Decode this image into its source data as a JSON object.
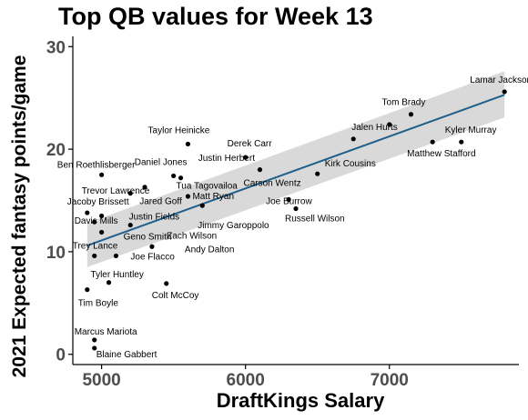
{
  "chart_data": {
    "type": "scatter",
    "title": "Top QB values for Week 13",
    "xlabel": "DraftKings Salary",
    "ylabel": "2021 Expected fantasy points/game",
    "xlim": [
      4800,
      7900
    ],
    "ylim": [
      -1,
      31
    ],
    "xticks": [
      5000,
      6000,
      7000
    ],
    "yticks": [
      0,
      10,
      20,
      30
    ],
    "grid": false,
    "colors": {
      "point": "#000000",
      "trend_line": "#1f5f8b",
      "confidence_band": "#d9d9d9"
    },
    "trend": {
      "x": [
        4900,
        7800
      ],
      "y": [
        10.6,
        25.3
      ],
      "band_upper": [
        12.8,
        27.6
      ],
      "band_lower": [
        8.5,
        23.1
      ]
    },
    "points": [
      {
        "name": "Lamar Jackson",
        "x": 7800,
        "y": 25.6
      },
      {
        "name": "Tom Brady",
        "x": 7150,
        "y": 23.4
      },
      {
        "name": "Jalen Hurts",
        "x": 6750,
        "y": 21.0
      },
      {
        "name": "Kyler Murray",
        "x": 7500,
        "y": 20.7
      },
      {
        "name": "Matthew Stafford",
        "x": 7300,
        "y": 20.7
      },
      {
        "name": "Taylor Heinicke",
        "x": 5600,
        "y": 20.5
      },
      {
        "name": "Derek Carr",
        "x": 6000,
        "y": 19.2
      },
      {
        "name": "Justin Herbert",
        "x": 7000,
        "y": 22.4
      },
      {
        "name": "Kirk Cousins",
        "x": 6500,
        "y": 17.6
      },
      {
        "name": "Carson Wentz",
        "x": 6100,
        "y": 18.0
      },
      {
        "name": "Daniel Jones",
        "x": 5500,
        "y": 17.4
      },
      {
        "name": "Tua Tagovailoa",
        "x": 5550,
        "y": 17.2
      },
      {
        "name": "Ben Roethlisberger",
        "x": 5000,
        "y": 17.5
      },
      {
        "name": "Trevor Lawrence",
        "x": 5300,
        "y": 16.3
      },
      {
        "name": "Jared Goff",
        "x": 5200,
        "y": 15.7
      },
      {
        "name": "Matt Ryan",
        "x": 5600,
        "y": 15.4
      },
      {
        "name": "Joe Burrow",
        "x": 6300,
        "y": 15.1
      },
      {
        "name": "Jacoby Brissett",
        "x": 4900,
        "y": 13.8
      },
      {
        "name": "Justin Fields",
        "x": 5000,
        "y": 13.5
      },
      {
        "name": "Jimmy Garoppolo",
        "x": 5700,
        "y": 14.5
      },
      {
        "name": "Russell Wilson",
        "x": 6350,
        "y": 14.2
      },
      {
        "name": "Davis Mills",
        "x": 4950,
        "y": 12.9
      },
      {
        "name": "Geno Smith",
        "x": 5000,
        "y": 11.9
      },
      {
        "name": "Zach Wilson",
        "x": 5200,
        "y": 12.6
      },
      {
        "name": "Trey Lance",
        "x": 4950,
        "y": 9.6
      },
      {
        "name": "Joe Flacco",
        "x": 5100,
        "y": 9.6
      },
      {
        "name": "Andy Dalton",
        "x": 5350,
        "y": 10.5
      },
      {
        "name": "Tyler Huntley",
        "x": 5050,
        "y": 7.0
      },
      {
        "name": "Tim Boyle",
        "x": 4900,
        "y": 6.3
      },
      {
        "name": "Colt McCoy",
        "x": 5450,
        "y": 6.9
      },
      {
        "name": "Marcus Mariota",
        "x": 4950,
        "y": 1.4
      },
      {
        "name": "Blaine Gabbert",
        "x": 4950,
        "y": 0.6
      }
    ]
  }
}
